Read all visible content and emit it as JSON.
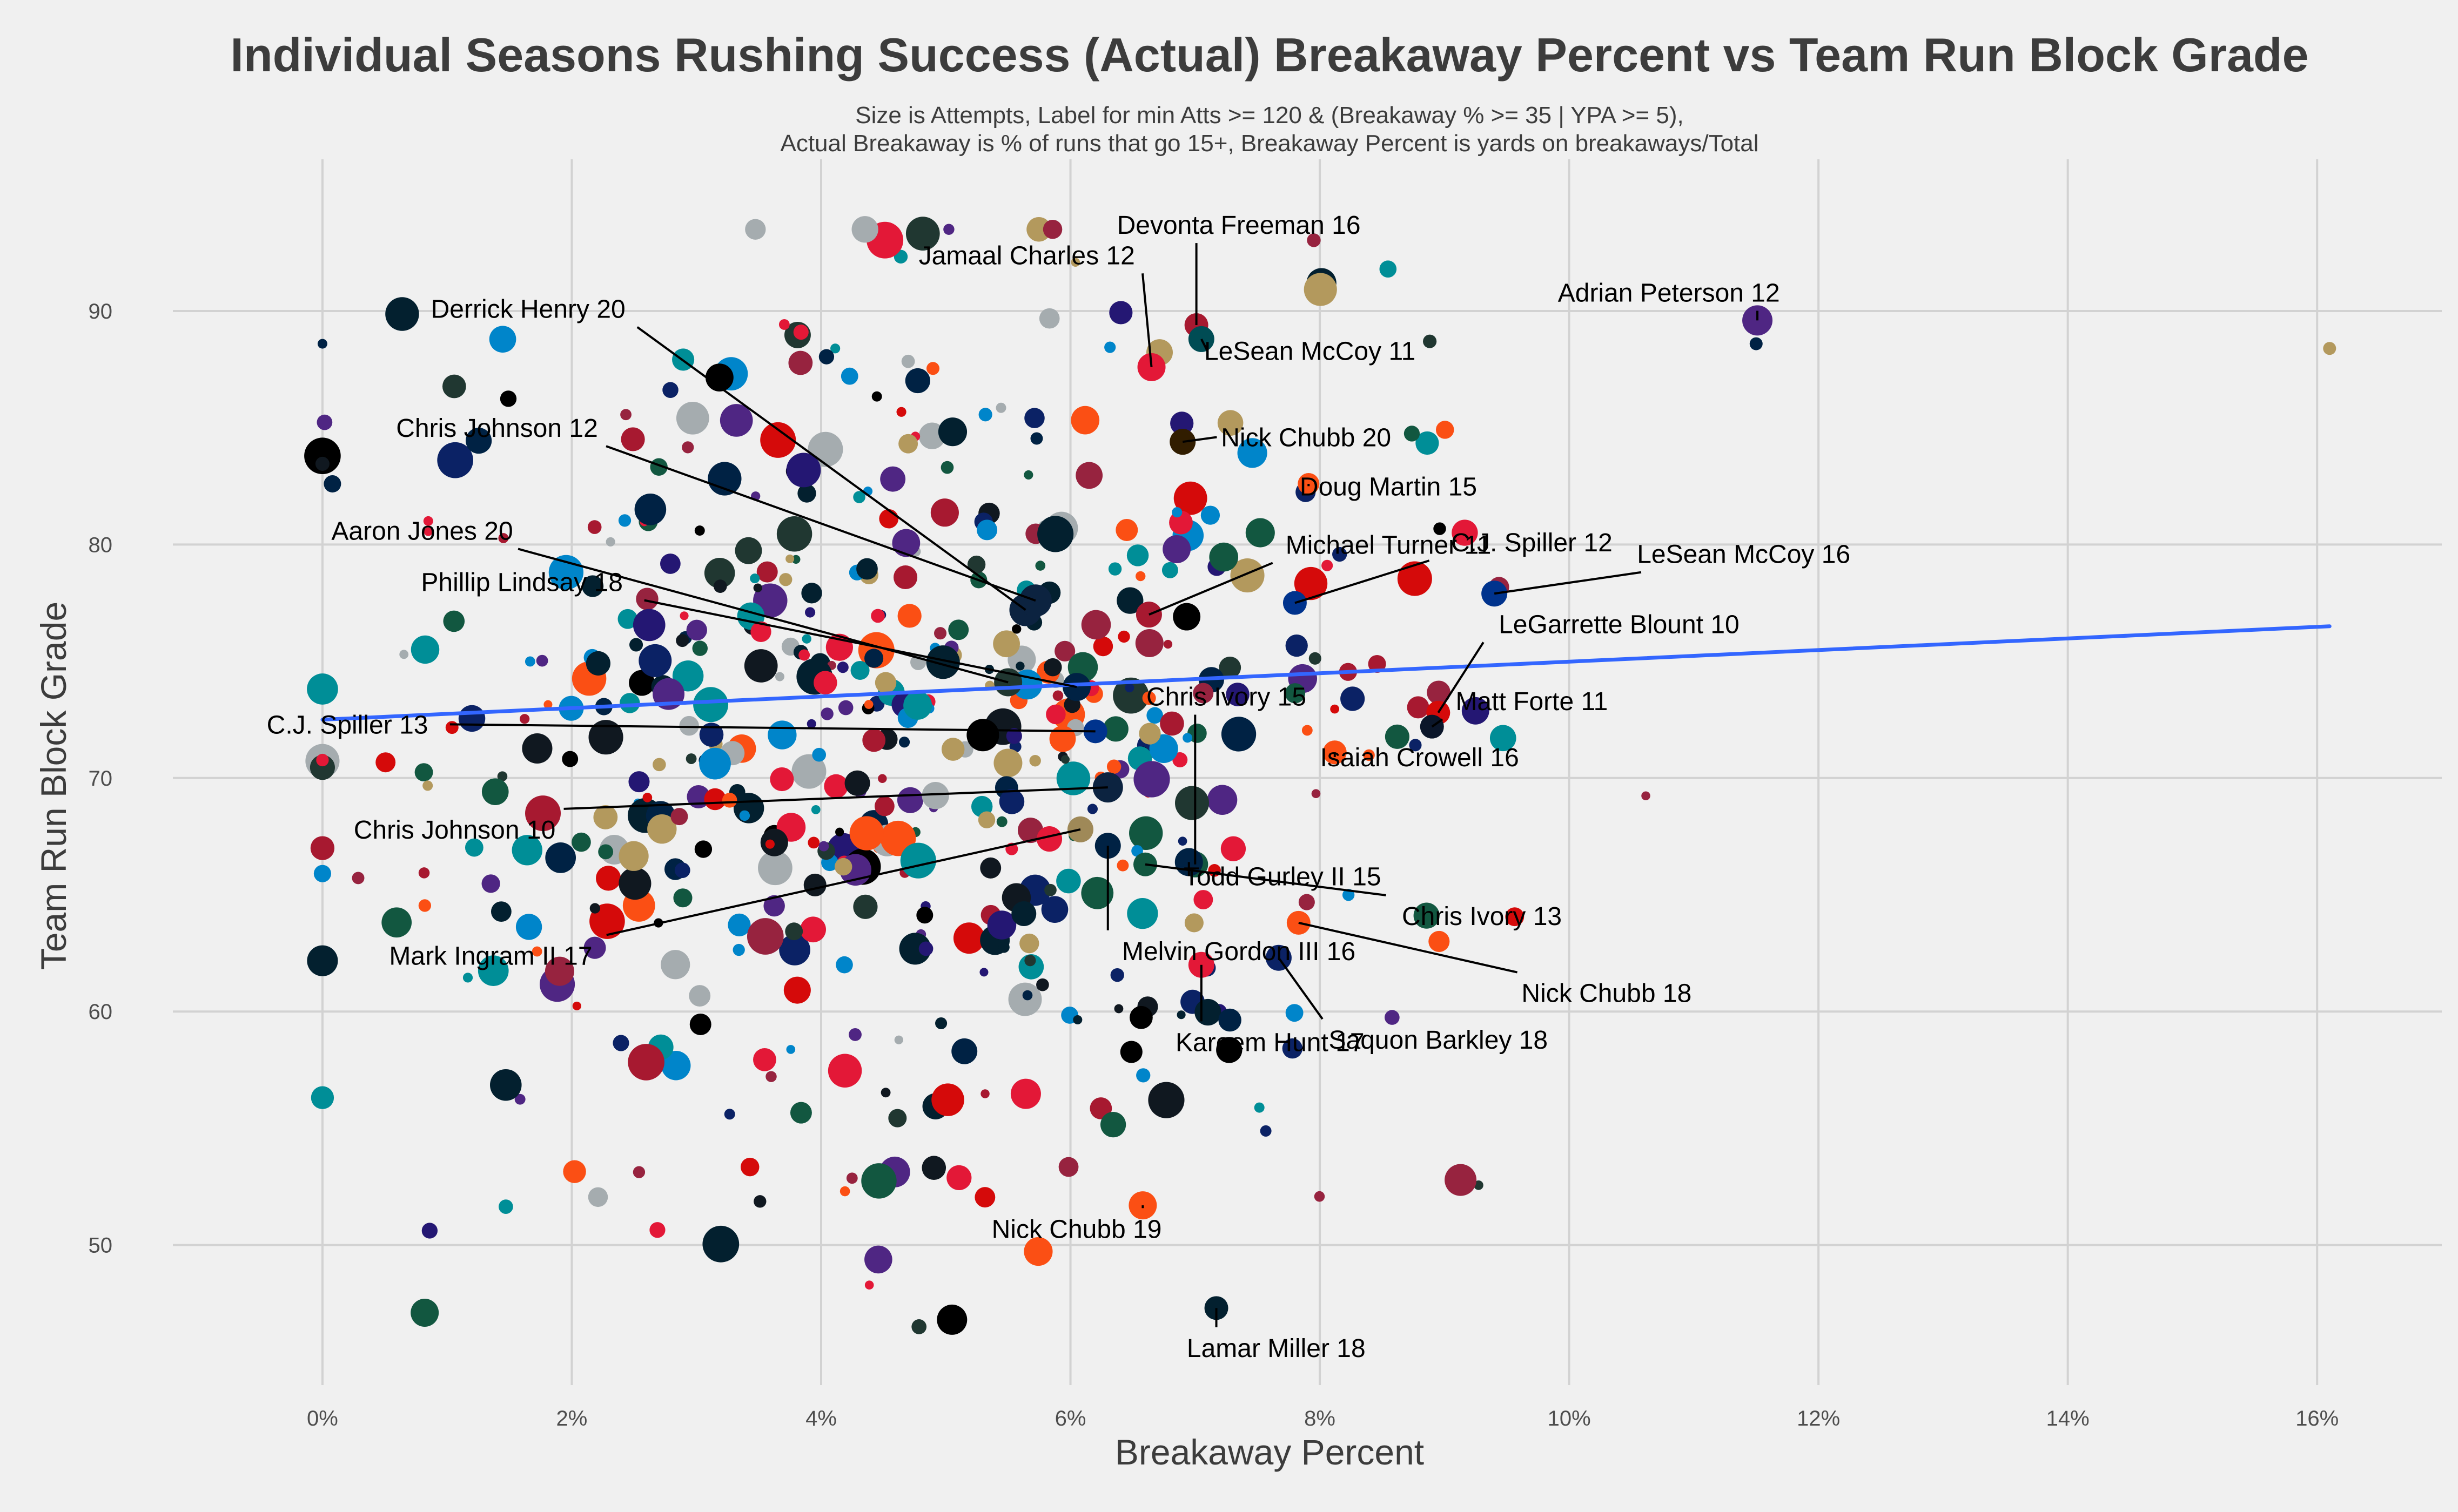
{
  "chart_data": {
    "type": "scatter",
    "title": "Individual Seasons Rushing Success (Actual) Breakaway Percent vs Team Run Block Grade",
    "subtitle_lines": [
      "Size is Attempts, Label for min Atts >= 120 & (Breakaway % >= 35 | YPA >= 5),",
      "Actual Breakaway is % of runs that go 15+, Breakaway Percent is yards on breakaways/Total"
    ],
    "xlabel": "Breakaway Percent",
    "ylabel": "Team Run Block Grade",
    "xlim": [
      -0.012,
      0.17
    ],
    "ylim": [
      44,
      96.5
    ],
    "xticks": [
      {
        "v": 0.0,
        "label": "0%"
      },
      {
        "v": 0.02,
        "label": "2%"
      },
      {
        "v": 0.04,
        "label": "4%"
      },
      {
        "v": 0.06,
        "label": "6%"
      },
      {
        "v": 0.08,
        "label": "8%"
      },
      {
        "v": 0.1,
        "label": "10%"
      },
      {
        "v": 0.12,
        "label": "12%"
      },
      {
        "v": 0.14,
        "label": "14%"
      },
      {
        "v": 0.16,
        "label": "16%"
      }
    ],
    "yticks": [
      {
        "v": 50,
        "label": "50"
      },
      {
        "v": 60,
        "label": "60"
      },
      {
        "v": 70,
        "label": "70"
      },
      {
        "v": 80,
        "label": "80"
      },
      {
        "v": 90,
        "label": "90"
      }
    ],
    "grid": true,
    "trend_line": {
      "x1": 0.0,
      "y1": 72.5,
      "x2": 0.161,
      "y2": 76.5,
      "color": "#3366ff"
    },
    "colors": {
      "background": "#f0f0f0",
      "grid": "#d2d2d2",
      "text": "#3c3c3c",
      "palette": [
        "#0b2265",
        "#002244",
        "#101820",
        "#000000",
        "#a71930",
        "#d50a0a",
        "#e31837",
        "#4f2683",
        "#203731",
        "#125740",
        "#008e97",
        "#0085ca",
        "#fb4f14",
        "#97233f",
        "#a5acaf",
        "#b3995d",
        "#03202f",
        "#241773"
      ]
    },
    "labeled_points": [
      {
        "name": "Devonta Freeman 16",
        "x": 0.0701,
        "y": 89.4,
        "s": 22,
        "color": "#a71930",
        "lx": 0.0735,
        "ly": 93.7
      },
      {
        "name": "Jamaal Charles 12",
        "x": 0.0665,
        "y": 87.6,
        "s": 26,
        "color": "#e31837",
        "lx": 0.0565,
        "ly": 92.4
      },
      {
        "name": "Adrian Peterson 12",
        "x": 0.1151,
        "y": 89.6,
        "s": 28,
        "color": "#4f2683",
        "lx": 0.108,
        "ly": 90.8
      },
      {
        "name": "LeSean McCoy 11",
        "x": 0.0705,
        "y": 88.8,
        "s": 24,
        "color": "#004c54",
        "lx": 0.0792,
        "ly": 88.3
      },
      {
        "name": "Derrick Henry 20",
        "x": 0.0564,
        "y": 77.2,
        "s": 30,
        "color": "#0c2340",
        "lx": 0.0165,
        "ly": 90.1
      },
      {
        "name": "Chris Johnson 12",
        "x": 0.0572,
        "y": 77.6,
        "s": 30,
        "color": "#0c2340",
        "lx": 0.014,
        "ly": 85.0
      },
      {
        "name": "Nick Chubb 20",
        "x": 0.069,
        "y": 84.4,
        "s": 24,
        "color": "#311d00",
        "lx": 0.0789,
        "ly": 84.6
      },
      {
        "name": "Doug Martin 15",
        "x": 0.0791,
        "y": 82.6,
        "s": 20,
        "color": "#fb4f14",
        "lx": 0.0855,
        "ly": 82.5
      },
      {
        "name": "Michael Turner 11",
        "x": 0.0663,
        "y": 77.0,
        "s": 24,
        "color": "#a71930",
        "lx": 0.0855,
        "ly": 80.0
      },
      {
        "name": "C.J. Spiller 12",
        "x": 0.078,
        "y": 77.5,
        "s": 22,
        "color": "#00338d",
        "lx": 0.097,
        "ly": 80.1
      },
      {
        "name": "LeSean McCoy 16",
        "x": 0.094,
        "y": 77.9,
        "s": 24,
        "color": "#00338d",
        "lx": 0.114,
        "ly": 79.6
      },
      {
        "name": "Aaron Jones 20",
        "x": 0.055,
        "y": 74.1,
        "s": 26,
        "color": "#203731",
        "lx": 0.008,
        "ly": 80.6
      },
      {
        "name": "Phillip Lindsay 18",
        "x": 0.0605,
        "y": 73.9,
        "s": 26,
        "color": "#002244",
        "lx": 0.016,
        "ly": 78.4
      },
      {
        "name": "LeGarrette Blount 10",
        "x": 0.0895,
        "y": 72.8,
        "s": 22,
        "color": "#d50a0a",
        "lx": 0.104,
        "ly": 76.6
      },
      {
        "name": "Matt Forte 11",
        "x": 0.089,
        "y": 72.2,
        "s": 22,
        "color": "#0b162a",
        "lx": 0.097,
        "ly": 73.3
      },
      {
        "name": "C.J. Spiller 13",
        "x": 0.062,
        "y": 72.0,
        "s": 22,
        "color": "#00338d",
        "lx": 0.002,
        "ly": 72.3
      },
      {
        "name": "Chris Ivory 15",
        "x": 0.07,
        "y": 66.3,
        "s": 24,
        "color": "#125740",
        "lx": 0.0725,
        "ly": 73.5
      },
      {
        "name": "Isaiah Crowell 16",
        "x": 0.0812,
        "y": 71.1,
        "s": 22,
        "color": "#fb4f14",
        "lx": 0.088,
        "ly": 70.9
      },
      {
        "name": "Chris Johnson 10",
        "x": 0.063,
        "y": 69.6,
        "s": 28,
        "color": "#0c2340",
        "lx": 0.0106,
        "ly": 67.8
      },
      {
        "name": "Todd Gurley II 15",
        "x": 0.0695,
        "y": 66.4,
        "s": 26,
        "color": "#002244",
        "lx": 0.077,
        "ly": 65.8
      },
      {
        "name": "Chris Ivory 13",
        "x": 0.066,
        "y": 66.3,
        "s": 22,
        "color": "#125740",
        "lx": 0.093,
        "ly": 64.1
      },
      {
        "name": "Mark Ingram II 17",
        "x": 0.0608,
        "y": 67.8,
        "s": 24,
        "color": "#9f8958",
        "lx": 0.0135,
        "ly": 62.4
      },
      {
        "name": "Melvin Gordon III 16",
        "x": 0.063,
        "y": 67.1,
        "s": 24,
        "color": "#002244",
        "lx": 0.0735,
        "ly": 62.6
      },
      {
        "name": "Nick Chubb 18",
        "x": 0.0783,
        "y": 63.8,
        "s": 22,
        "color": "#fb4f14",
        "lx": 0.103,
        "ly": 60.8
      },
      {
        "name": "Saquon Barkley 18",
        "x": 0.0767,
        "y": 62.3,
        "s": 24,
        "color": "#0b2265",
        "lx": 0.0895,
        "ly": 58.8
      },
      {
        "name": "Kareem Hunt 17",
        "x": 0.0705,
        "y": 62.0,
        "s": 24,
        "color": "#e31837",
        "lx": 0.076,
        "ly": 58.7
      },
      {
        "name": "Nick Chubb 19",
        "x": 0.0658,
        "y": 51.7,
        "s": 26,
        "color": "#fb4f14",
        "lx": 0.0605,
        "ly": 50.7
      },
      {
        "name": "Lamar Miller 18",
        "x": 0.0717,
        "y": 47.3,
        "s": 22,
        "color": "#03202f",
        "lx": 0.0765,
        "ly": 45.6
      }
    ]
  }
}
